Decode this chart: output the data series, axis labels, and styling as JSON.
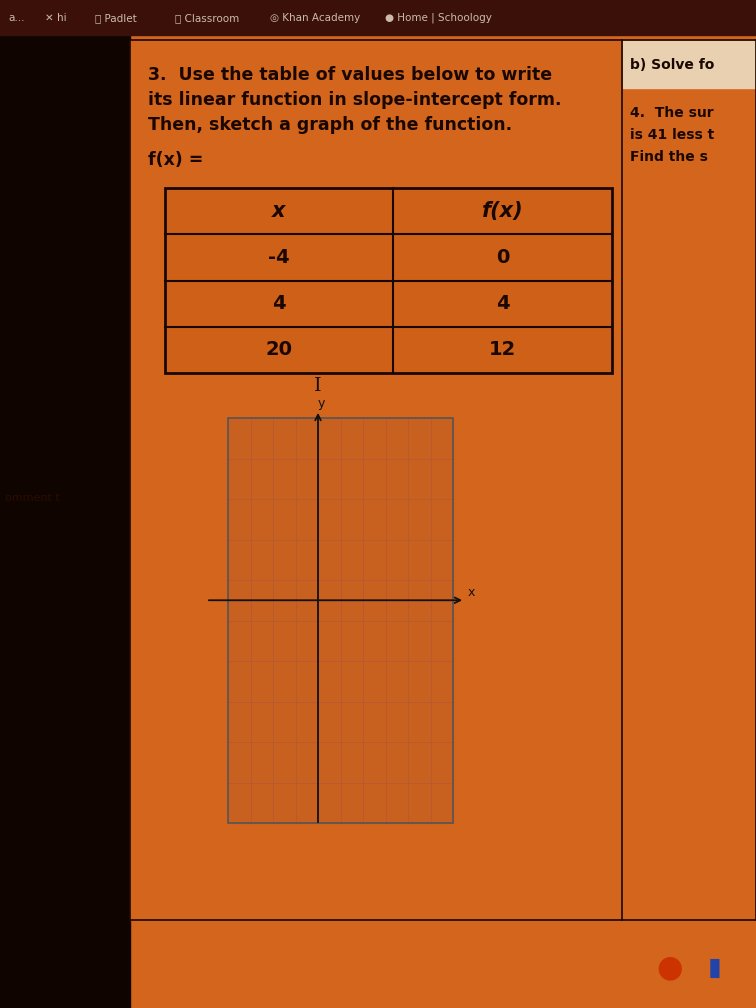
{
  "title_line1": "3.  Use the table of values below to write",
  "title_line2": "its linear function in slope-intercept form.",
  "title_line3": "Then, sketch a graph of the function.",
  "fx_label": "f(x) =",
  "table_headers": [
    "x",
    "f(x)"
  ],
  "table_data": [
    [
      "-4",
      "0"
    ],
    [
      "4",
      "4"
    ],
    [
      "20",
      "12"
    ]
  ],
  "right_panel_top_text": "b) Solve fo",
  "right_panel_lines": [
    "4.  The sur",
    "is 41 less t",
    "Find the s"
  ],
  "bg_orange": "#d4651c",
  "bg_dark_left": "#1a0800",
  "browser_bar_bg": "#3a1008",
  "browser_bar_text": "#ccbbaa",
  "main_panel_bg": "#d4651c",
  "right_panel_bg": "#cf6018",
  "right_top_box_bg": "#e8d0b0",
  "table_bg": "#cf6018",
  "table_border_color": "#1a0800",
  "text_dark": "#1a0800",
  "grid_line_color": "#b85830",
  "graph_border_color": "#555555",
  "graph_bg": "#c86020",
  "graph_axis_color": "#111111",
  "cursor_I_color": "#111111"
}
